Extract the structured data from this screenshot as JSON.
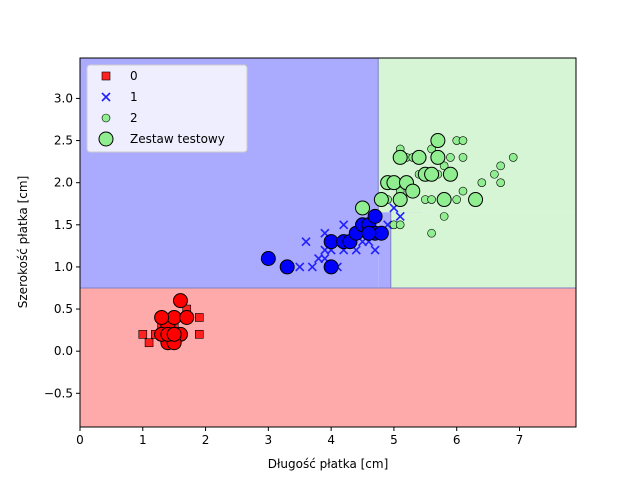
{
  "chart_data": {
    "type": "scatter",
    "title": "",
    "xlabel": "Długość płatka [cm]",
    "ylabel": "Szerokość płatka [cm]",
    "xlim": [
      0,
      7.9
    ],
    "ylim": [
      -0.9,
      3.48
    ],
    "xticks": [
      0,
      1,
      2,
      3,
      4,
      5,
      6,
      7
    ],
    "xtick_labels": [
      "0",
      "1",
      "2",
      "3",
      "4",
      "5",
      "6",
      "7"
    ],
    "yticks": [
      -0.5,
      0.0,
      0.5,
      1.0,
      1.5,
      2.0,
      2.5,
      3.0
    ],
    "ytick_labels": [
      "−0.5",
      "0.0",
      "0.5",
      "1.0",
      "1.5",
      "2.0",
      "2.5",
      "3.0"
    ],
    "grid": false,
    "legend_position": "top-left",
    "decision_regions": [
      {
        "class": "0",
        "color": "#ffaaaa",
        "x": [
          0,
          7.9
        ],
        "y": [
          -0.9,
          0.75
        ]
      },
      {
        "class": "1",
        "color": "#aaaaff",
        "x": [
          0,
          4.75
        ],
        "y": [
          0.75,
          3.48
        ]
      },
      {
        "class": "1",
        "color": "#aaaaff",
        "x": [
          4.75,
          4.95
        ],
        "y": [
          0.75,
          1.65
        ]
      },
      {
        "class": "1",
        "color": "#aaaaff",
        "x": [
          4.95,
          5.45
        ],
        "y": [
          1.55,
          1.75
        ]
      },
      {
        "class": "2",
        "color": "#d5f5d5",
        "x": [
          4.75,
          7.9
        ],
        "y": [
          1.65,
          3.48
        ]
      },
      {
        "class": "2",
        "color": "#d5f5d5",
        "x": [
          4.95,
          7.9
        ],
        "y": [
          0.75,
          1.65
        ]
      }
    ],
    "series": [
      {
        "name": "0",
        "marker": "square",
        "color": "#ff2020",
        "points": [
          [
            1.4,
            0.2
          ],
          [
            1.4,
            0.2
          ],
          [
            1.3,
            0.2
          ],
          [
            1.5,
            0.2
          ],
          [
            1.7,
            0.4
          ],
          [
            1.4,
            0.3
          ],
          [
            1.5,
            0.1
          ],
          [
            1.6,
            0.2
          ],
          [
            1.1,
            0.1
          ],
          [
            1.2,
            0.2
          ],
          [
            1.5,
            0.4
          ],
          [
            1.3,
            0.4
          ],
          [
            1.0,
            0.2
          ],
          [
            1.9,
            0.2
          ],
          [
            1.6,
            0.4
          ],
          [
            1.9,
            0.4
          ],
          [
            1.3,
            0.3
          ],
          [
            1.6,
            0.6
          ],
          [
            1.7,
            0.5
          ],
          [
            1.5,
            0.3
          ]
        ]
      },
      {
        "name": "1",
        "marker": "x",
        "color": "#2020ff",
        "points": [
          [
            3.5,
            1.0
          ],
          [
            3.6,
            1.3
          ],
          [
            3.7,
            1.0
          ],
          [
            3.8,
            1.1
          ],
          [
            3.9,
            1.1
          ],
          [
            3.9,
            1.4
          ],
          [
            3.9,
            1.2
          ],
          [
            4.0,
            1.0
          ],
          [
            4.0,
            1.2
          ],
          [
            4.0,
            1.3
          ],
          [
            4.1,
            1.0
          ],
          [
            4.1,
            1.3
          ],
          [
            4.2,
            1.2
          ],
          [
            4.2,
            1.5
          ],
          [
            4.3,
            1.3
          ],
          [
            4.4,
            1.2
          ],
          [
            4.4,
            1.4
          ],
          [
            4.5,
            1.3
          ],
          [
            4.5,
            1.5
          ],
          [
            4.6,
            1.3
          ],
          [
            4.6,
            1.4
          ],
          [
            4.7,
            1.2
          ],
          [
            4.7,
            1.4
          ],
          [
            4.8,
            1.4
          ],
          [
            4.9,
            1.5
          ],
          [
            5.0,
            1.7
          ],
          [
            5.1,
            1.6
          ],
          [
            4.8,
            1.8
          ]
        ]
      },
      {
        "name": "2",
        "marker": "circle",
        "color": "#90ee90",
        "points": [
          [
            4.8,
            1.8
          ],
          [
            4.9,
            1.8
          ],
          [
            5.0,
            1.5
          ],
          [
            5.1,
            1.5
          ],
          [
            5.1,
            1.9
          ],
          [
            5.1,
            2.4
          ],
          [
            5.2,
            2.3
          ],
          [
            5.3,
            2.3
          ],
          [
            5.4,
            2.1
          ],
          [
            5.5,
            1.8
          ],
          [
            5.5,
            2.1
          ],
          [
            5.6,
            1.8
          ],
          [
            5.6,
            2.1
          ],
          [
            5.6,
            2.4
          ],
          [
            5.7,
            2.1
          ],
          [
            5.8,
            1.6
          ],
          [
            5.8,
            2.2
          ],
          [
            5.9,
            2.3
          ],
          [
            6.0,
            1.8
          ],
          [
            6.0,
            2.5
          ],
          [
            6.1,
            1.9
          ],
          [
            6.1,
            2.3
          ],
          [
            6.1,
            2.5
          ],
          [
            6.4,
            2.0
          ],
          [
            6.6,
            2.1
          ],
          [
            6.7,
            2.0
          ],
          [
            6.7,
            2.2
          ],
          [
            6.9,
            2.3
          ],
          [
            5.6,
            1.4
          ],
          [
            5.8,
            1.8
          ]
        ]
      },
      {
        "name": "Zestaw testowy",
        "marker": "big-circle",
        "color": "test-fill",
        "points": [
          [
            1.5,
            0.2,
            0
          ],
          [
            1.4,
            0.2,
            0
          ],
          [
            1.6,
            0.2,
            0
          ],
          [
            1.4,
            0.3,
            0
          ],
          [
            1.5,
            0.4,
            0
          ],
          [
            1.3,
            0.4,
            0
          ],
          [
            1.4,
            0.1,
            0
          ],
          [
            1.5,
            0.1,
            0
          ],
          [
            1.6,
            0.6,
            0
          ],
          [
            1.7,
            0.4,
            0
          ],
          [
            1.3,
            0.2,
            0
          ],
          [
            1.4,
            0.2,
            0
          ],
          [
            1.5,
            0.2,
            0
          ],
          [
            3.0,
            1.1,
            1
          ],
          [
            3.3,
            1.0,
            1
          ],
          [
            4.0,
            1.0,
            1
          ],
          [
            4.0,
            1.3,
            1
          ],
          [
            4.2,
            1.3,
            1
          ],
          [
            4.3,
            1.3,
            1
          ],
          [
            4.4,
            1.4,
            1
          ],
          [
            4.5,
            1.5,
            1
          ],
          [
            4.6,
            1.5,
            1
          ],
          [
            4.7,
            1.4,
            1
          ],
          [
            4.7,
            1.6,
            1
          ],
          [
            4.8,
            1.4,
            1
          ],
          [
            4.6,
            1.4,
            1
          ],
          [
            4.5,
            1.7,
            2
          ],
          [
            4.8,
            1.8,
            2
          ],
          [
            4.9,
            2.0,
            2
          ],
          [
            5.0,
            2.0,
            2
          ],
          [
            5.1,
            2.3,
            2
          ],
          [
            5.1,
            1.8,
            2
          ],
          [
            5.2,
            2.0,
            2
          ],
          [
            5.3,
            1.9,
            2
          ],
          [
            5.4,
            2.3,
            2
          ],
          [
            5.5,
            2.1,
            2
          ],
          [
            5.6,
            2.1,
            2
          ],
          [
            5.7,
            2.3,
            2
          ],
          [
            5.7,
            2.5,
            2
          ],
          [
            5.8,
            1.8,
            2
          ],
          [
            5.9,
            2.1,
            2
          ],
          [
            6.3,
            1.8,
            2
          ]
        ]
      }
    ]
  },
  "legend": {
    "entries": [
      {
        "label": "0",
        "marker": "square",
        "color": "#ff2020"
      },
      {
        "label": "1",
        "marker": "x",
        "color": "#2020ff"
      },
      {
        "label": "2",
        "marker": "circle",
        "color": "#90ee90"
      },
      {
        "label": "Zestaw testowy",
        "marker": "big-circle",
        "color": "#90ee90"
      }
    ]
  },
  "colors": {
    "test_fills": [
      "#ff0000",
      "#0000ff",
      "#90ee90"
    ]
  }
}
